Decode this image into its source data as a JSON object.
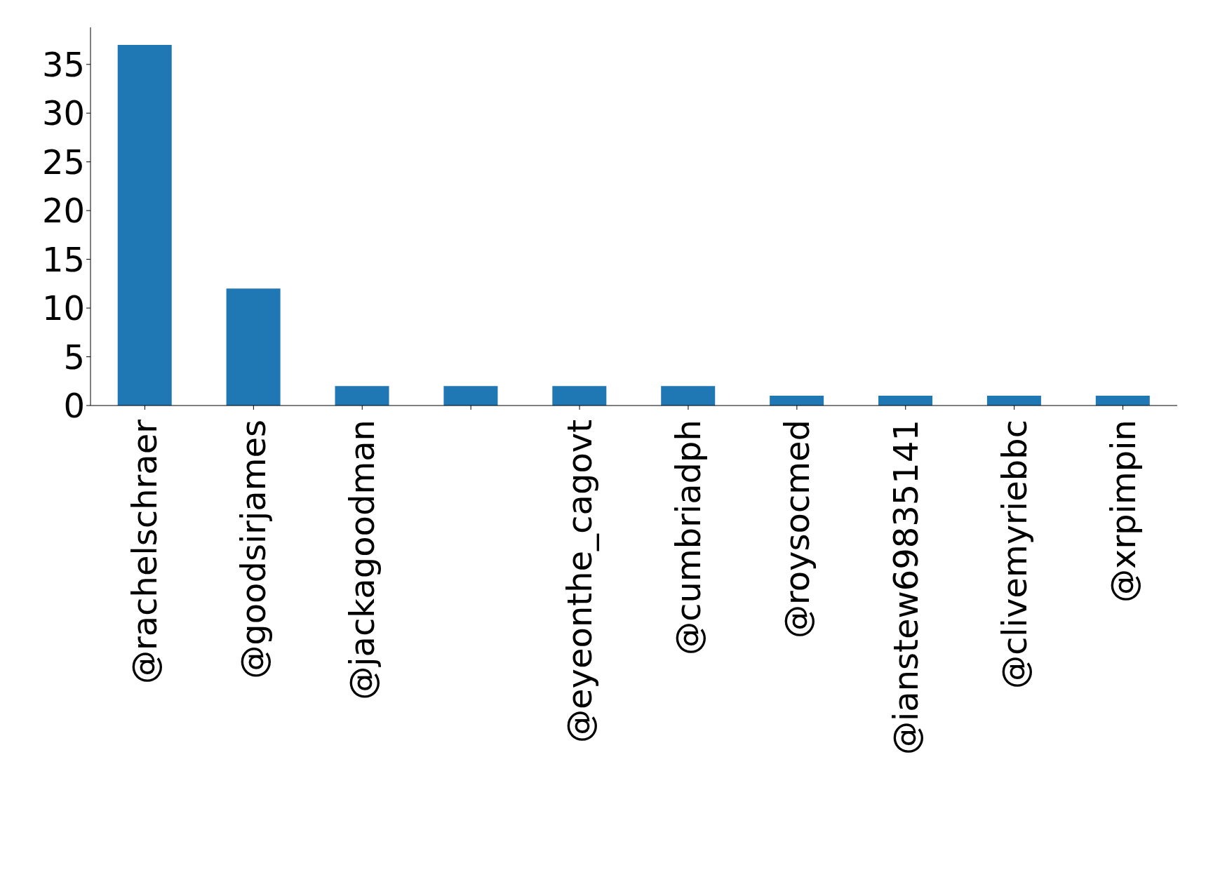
{
  "chart_data": {
    "type": "bar",
    "categories": [
      "@rachelschraer",
      "@goodsirjames",
      "@jackagoodman",
      null,
      "@eyeonthe_cagovt",
      "@cumbriadph",
      "@roysocmed",
      "@ianstew69835141",
      "@clivemyriebbc",
      "@xrpimpin"
    ],
    "values": [
      37,
      12,
      2,
      2,
      2,
      2,
      1,
      1,
      1,
      1
    ],
    "color": "#1f77b4",
    "ylim": [
      0,
      38.8
    ],
    "yticks": [
      0,
      5,
      10,
      15,
      20,
      25,
      30,
      35
    ],
    "grid": false
  }
}
